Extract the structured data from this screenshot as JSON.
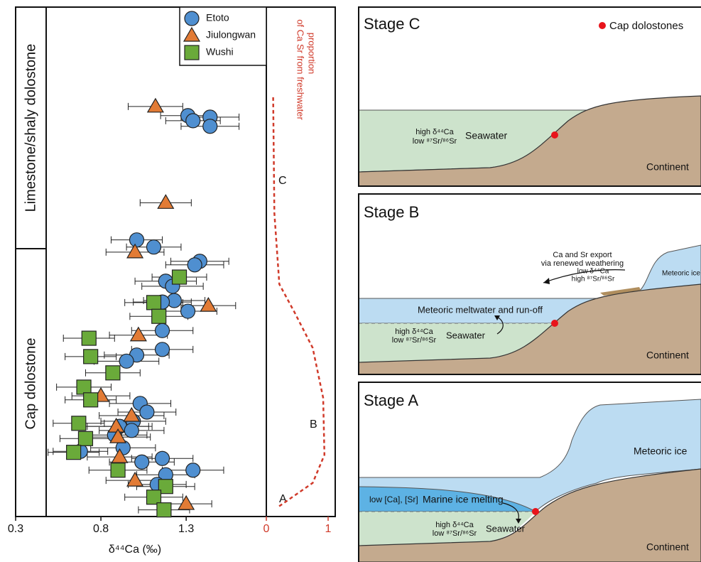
{
  "chart_data": [
    {
      "type": "scatter",
      "xlabel": "δ⁴⁴Ca (‰)",
      "xlim": [
        0.3,
        1.77
      ],
      "xticks": [
        0.3,
        0.8,
        1.3
      ],
      "ylim": [
        0,
        100
      ],
      "units": [
        "Limestone/shaly dolostone",
        "Cap dolostone"
      ],
      "series": [
        {
          "name": "Etoto",
          "color": "#4f8fd0",
          "marker": "circle",
          "x": [
            1.31,
            1.44,
            1.34,
            1.44,
            1.01,
            1.38,
            1.35,
            1.11,
            1.18,
            1.22,
            1.23,
            1.16,
            1.31,
            1.16,
            1.01,
            0.95,
            1.16,
            1.03,
            1.07,
            0.99,
            0.91,
            0.98,
            0.88,
            0.93,
            0.68,
            1.04,
            1.16,
            1.34,
            1.18,
            1.13
          ],
          "values": [
            78.7,
            78.4,
            77.7,
            76.6,
            54.3,
            50.1,
            49.4,
            52.9,
            46.2,
            45.2,
            42.4,
            42.1,
            40.3,
            36.5,
            31.7,
            30.5,
            32.8,
            22.2,
            20.5,
            18.7,
            17.7,
            16.9,
            16.0,
            13.5,
            12.8,
            10.7,
            11.4,
            9.1,
            8.2,
            6.3
          ],
          "xerr": [
            0.16,
            0.17,
            0.16,
            0.17,
            0.15,
            0.17,
            0.17,
            0.16,
            0.18,
            0.18,
            0.18,
            0.17,
            0.17,
            0.18,
            0.19,
            0.19,
            0.18,
            0.18,
            0.17,
            0.19,
            0.19,
            0.19,
            0.19,
            0.19,
            0.16,
            0.19,
            0.18,
            0.18,
            0.17,
            0.17
          ]
        },
        {
          "name": "Jiulongwan",
          "color": "#e27b35",
          "marker": "triangle",
          "x": [
            1.12,
            1.18,
            1.0,
            1.43,
            1.02,
            0.8,
            0.98,
            0.89,
            0.9,
            0.91,
            1.0,
            1.3
          ],
          "values": [
            80.5,
            61.6,
            51.9,
            41.4,
            35.6,
            23.7,
            19.8,
            17.7,
            15.6,
            11.7,
            7.1,
            2.5
          ],
          "xerr": [
            0.16,
            0.15,
            0.17,
            0.16,
            0.17,
            0.17,
            0.19,
            0.19,
            0.19,
            0.19,
            0.17,
            0.15
          ]
        },
        {
          "name": "Wushi",
          "color": "#6aaa3a",
          "marker": "square",
          "x": [
            1.26,
            1.11,
            1.14,
            0.73,
            0.74,
            0.87,
            0.7,
            0.74,
            0.67,
            0.71,
            0.64,
            0.9,
            1.18,
            1.11,
            1.17
          ],
          "values": [
            47.0,
            42.0,
            39.3,
            35.0,
            31.4,
            28.2,
            25.4,
            22.9,
            18.3,
            15.3,
            12.6,
            9.1,
            5.9,
            3.8,
            1.3
          ],
          "xerr": [
            0.16,
            0.17,
            0.17,
            0.15,
            0.15,
            0.16,
            0.16,
            0.15,
            0.15,
            0.15,
            0.15,
            0.17,
            0.17,
            0.17,
            0.15
          ]
        }
      ]
    },
    {
      "type": "line",
      "color": "#d03a2a",
      "xlim": [
        0,
        1
      ],
      "xticks": [
        0,
        1
      ],
      "ylim": [
        0,
        100
      ],
      "annotation": [
        "proportion",
        "of Ca Sr from freshwater"
      ],
      "labels": [
        "A",
        "B",
        "C"
      ],
      "x": [
        0.11,
        0.13,
        0.21,
        0.46,
        0.75,
        0.92,
        0.94,
        0.75,
        0.17
      ],
      "values": [
        82.3,
        59.6,
        45.6,
        40.0,
        33.1,
        23.3,
        12.1,
        6.6,
        1.7
      ]
    }
  ],
  "diagram": {
    "legend": "Cap dolostones",
    "stage_c": {
      "title": "Stage C",
      "calcium": "high δ⁴⁴Ca",
      "strontium": "low ⁸⁷Sr/⁸⁶Sr",
      "water": "Seawater",
      "land": "Continent"
    },
    "stage_b": {
      "title": "Stage B",
      "export": [
        "Ca and Sr export",
        "via renewed weathering"
      ],
      "export_calcium": "low δ⁴⁴Ca",
      "export_strontium": "high ⁸⁷Sr/⁸⁶Sr",
      "ice": "Meteoric ice",
      "meltwater": "Meteoric meltwater and run-off",
      "calcium": "high δ⁴⁴Ca",
      "strontium": "low ⁸⁷Sr/⁸⁶Sr",
      "water": "Seawater",
      "land": "Continent"
    },
    "stage_a": {
      "title": "Stage A",
      "ice": "Meteoric ice",
      "concentration": "low [Ca], [Sr]",
      "melting": "Marine ice melting",
      "calcium": "high δ⁴⁴Ca",
      "strontium": "low ⁸⁷Sr/⁸⁶Sr",
      "water": "Seawater",
      "land": "Continent"
    }
  }
}
